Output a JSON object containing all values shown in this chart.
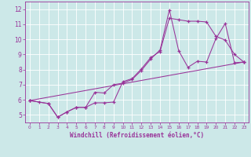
{
  "background_color": "#cce8e8",
  "grid_color": "#b0d8d8",
  "line_color": "#993399",
  "xlabel": "Windchill (Refroidissement éolien,°C)",
  "xlim": [
    -0.5,
    23.5
  ],
  "ylim": [
    4.5,
    12.5
  ],
  "yticks": [
    5,
    6,
    7,
    8,
    9,
    10,
    11,
    12
  ],
  "xticks": [
    0,
    1,
    2,
    3,
    4,
    5,
    6,
    7,
    8,
    9,
    10,
    11,
    12,
    13,
    14,
    15,
    16,
    17,
    18,
    19,
    20,
    21,
    22,
    23
  ],
  "curve1_x": [
    0,
    1,
    2,
    3,
    4,
    5,
    6,
    7,
    8,
    9,
    10,
    11,
    12,
    13,
    14,
    15,
    16,
    17,
    18,
    19,
    20,
    21,
    22,
    23
  ],
  "curve1_y": [
    5.95,
    5.85,
    5.75,
    4.85,
    5.2,
    5.5,
    5.5,
    5.8,
    5.8,
    5.85,
    7.2,
    7.4,
    8.05,
    8.8,
    9.2,
    11.4,
    11.3,
    11.2,
    11.2,
    11.15,
    10.2,
    9.95,
    9.0,
    8.5
  ],
  "curve2_x": [
    0,
    2,
    3,
    4,
    5,
    6,
    7,
    8,
    9,
    10,
    11,
    12,
    13,
    14,
    15,
    16,
    17,
    18,
    19,
    20,
    21,
    22,
    23
  ],
  "curve2_y": [
    5.95,
    5.75,
    4.85,
    5.2,
    5.5,
    5.5,
    6.5,
    6.45,
    7.0,
    7.1,
    7.35,
    7.95,
    8.7,
    9.3,
    11.95,
    9.25,
    8.15,
    8.55,
    8.5,
    10.05,
    11.05,
    8.45,
    8.5
  ],
  "curve3_x": [
    0,
    23
  ],
  "curve3_y": [
    5.95,
    8.5
  ]
}
